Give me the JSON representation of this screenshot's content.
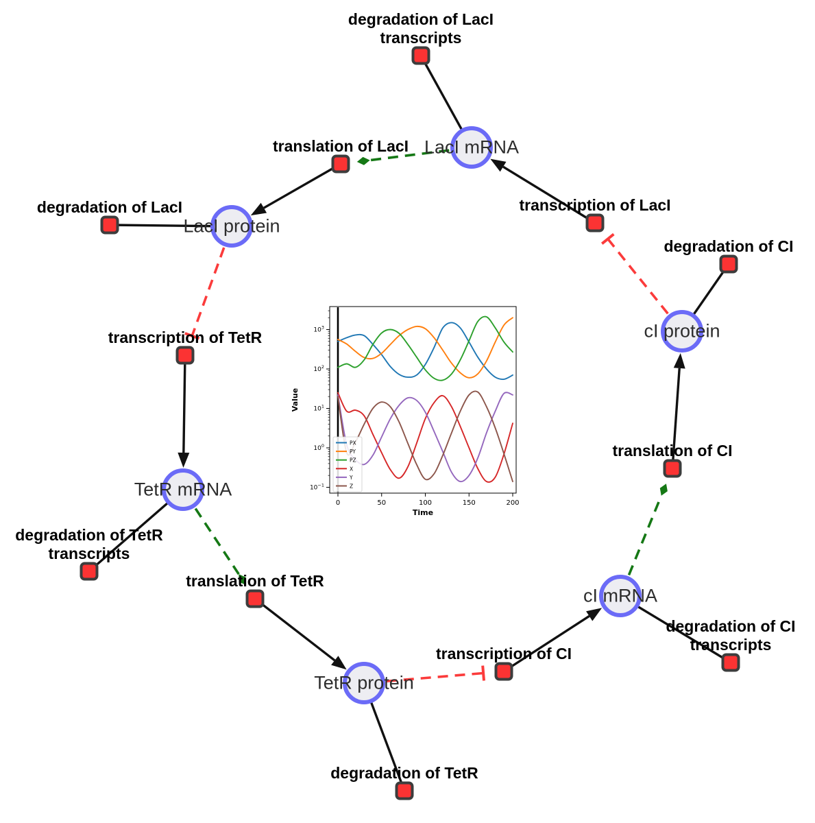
{
  "figure": {
    "title": "repressilator reaction network",
    "background": "#ffffff"
  },
  "diagram": {
    "species_nodes": [
      {
        "id": "laci_mrna",
        "label": "LacI mRNA"
      },
      {
        "id": "laci_protein",
        "label": "LacI protein"
      },
      {
        "id": "ci_protein",
        "label": "cI protein"
      },
      {
        "id": "tetr_mrna",
        "label": "TetR mRNA"
      },
      {
        "id": "tetr_protein",
        "label": "TetR protein"
      },
      {
        "id": "ci_mrna",
        "label": "cI mRNA"
      }
    ],
    "reaction_nodes": [
      {
        "id": "deg_laci_tx",
        "label_lines": [
          "degradation of LacI",
          "transcripts"
        ]
      },
      {
        "id": "transl_laci",
        "label_lines": [
          "translation of LacI"
        ]
      },
      {
        "id": "deg_laci",
        "label_lines": [
          "degradation of LacI"
        ]
      },
      {
        "id": "txn_laci",
        "label_lines": [
          "transcription of LacI"
        ]
      },
      {
        "id": "deg_ci",
        "label_lines": [
          "degradation of CI"
        ]
      },
      {
        "id": "txn_tetr",
        "label_lines": [
          "transcription of TetR"
        ]
      },
      {
        "id": "deg_tetr_tx",
        "label_lines": [
          "degradation of TetR",
          "transcripts"
        ]
      },
      {
        "id": "transl_tetr",
        "label_lines": [
          "translation of TetR"
        ]
      },
      {
        "id": "deg_tetr",
        "label_lines": [
          "degradation of TetR"
        ]
      },
      {
        "id": "txn_ci",
        "label_lines": [
          "transcription of CI"
        ]
      },
      {
        "id": "deg_ci_tx",
        "label_lines": [
          "degradation of CI",
          "transcripts"
        ]
      },
      {
        "id": "transl_ci",
        "label_lines": [
          "translation of CI"
        ]
      }
    ],
    "edges": [
      {
        "from": "laci_mrna",
        "to": "deg_laci_tx",
        "type": "consumption"
      },
      {
        "from": "txn_laci",
        "to": "laci_mrna",
        "type": "production"
      },
      {
        "from": "laci_mrna",
        "to": "transl_laci",
        "type": "modifier"
      },
      {
        "from": "transl_laci",
        "to": "laci_protein",
        "type": "production"
      },
      {
        "from": "laci_protein",
        "to": "deg_laci",
        "type": "consumption"
      },
      {
        "from": "laci_protein",
        "to": "txn_tetr",
        "type": "inhibition"
      },
      {
        "from": "txn_tetr",
        "to": "tetr_mrna",
        "type": "production"
      },
      {
        "from": "tetr_mrna",
        "to": "deg_tetr_tx",
        "type": "consumption"
      },
      {
        "from": "tetr_mrna",
        "to": "transl_tetr",
        "type": "modifier"
      },
      {
        "from": "transl_tetr",
        "to": "tetr_protein",
        "type": "production"
      },
      {
        "from": "tetr_protein",
        "to": "deg_tetr",
        "type": "consumption"
      },
      {
        "from": "tetr_protein",
        "to": "txn_ci",
        "type": "inhibition"
      },
      {
        "from": "txn_ci",
        "to": "ci_mrna",
        "type": "production"
      },
      {
        "from": "ci_mrna",
        "to": "deg_ci_tx",
        "type": "consumption"
      },
      {
        "from": "ci_mrna",
        "to": "transl_ci",
        "type": "modifier"
      },
      {
        "from": "transl_ci",
        "to": "ci_protein",
        "type": "production"
      },
      {
        "from": "ci_protein",
        "to": "deg_ci",
        "type": "consumption"
      },
      {
        "from": "ci_protein",
        "to": "txn_laci",
        "type": "inhibition"
      }
    ],
    "colors": {
      "species_fill": "#ededf2",
      "species_border": "#6b6bf7",
      "reaction_fill": "#fb3333",
      "reaction_border": "#3d3d3d",
      "edge_black": "#111111",
      "modifier_green": "#157815",
      "inhibition_red": "#fb3b3b"
    }
  },
  "chart_data": {
    "type": "line",
    "title": "",
    "xlabel": "Time",
    "ylabel": "Value",
    "x_scale": "linear",
    "y_scale": "log",
    "xlim": [
      -9,
      205
    ],
    "ylim_log_exponents": [
      -1.15,
      3.58
    ],
    "x_ticks": [
      0,
      50,
      100,
      150,
      200
    ],
    "y_tick_exponents": [
      3,
      2,
      1,
      0,
      -1
    ],
    "grid": false,
    "legend_position": "lower left",
    "event_line_x": 0,
    "x": [
      0,
      10,
      20,
      30,
      40,
      50,
      60,
      70,
      80,
      90,
      100,
      110,
      120,
      130,
      140,
      150,
      160,
      170,
      180,
      190,
      200
    ],
    "series": [
      {
        "name": "PX",
        "color": "#1f77b4",
        "values": [
          500,
          620,
          730,
          700,
          420,
          230,
          115,
          73,
          62,
          70,
          130,
          350,
          1100,
          1500,
          1100,
          480,
          200,
          100,
          62,
          55,
          70
        ]
      },
      {
        "name": "PY",
        "color": "#ff7f0e",
        "values": [
          560,
          430,
          280,
          195,
          185,
          250,
          420,
          700,
          1000,
          1200,
          1050,
          620,
          300,
          140,
          80,
          60,
          75,
          160,
          480,
          1300,
          2000
        ]
      },
      {
        "name": "PZ",
        "color": "#2ca02c",
        "values": [
          110,
          135,
          110,
          170,
          420,
          820,
          1000,
          800,
          420,
          200,
          95,
          58,
          52,
          75,
          170,
          520,
          1600,
          2100,
          1100,
          480,
          270
        ]
      },
      {
        "name": "X",
        "color": "#d62728",
        "values": [
          25,
          8.5,
          9,
          6.5,
          2.2,
          0.75,
          0.28,
          0.17,
          0.33,
          1.3,
          5.5,
          14,
          21,
          11,
          3.5,
          1.0,
          0.3,
          0.14,
          0.18,
          0.7,
          4.2
        ]
      },
      {
        "name": "Y",
        "color": "#9467bd",
        "values": [
          22,
          1.2,
          0.5,
          0.38,
          0.65,
          1.9,
          5.5,
          12,
          18.5,
          16,
          8,
          2.6,
          0.8,
          0.24,
          0.14,
          0.2,
          0.55,
          2.4,
          8.5,
          24,
          22
        ]
      },
      {
        "name": "Z",
        "color": "#8c564b",
        "values": [
          20,
          0.75,
          1.4,
          4.0,
          10,
          14.5,
          11,
          4.5,
          1.3,
          0.38,
          0.16,
          0.22,
          0.65,
          2.4,
          8.5,
          22,
          26,
          11,
          3.2,
          0.7,
          0.14
        ]
      }
    ]
  }
}
